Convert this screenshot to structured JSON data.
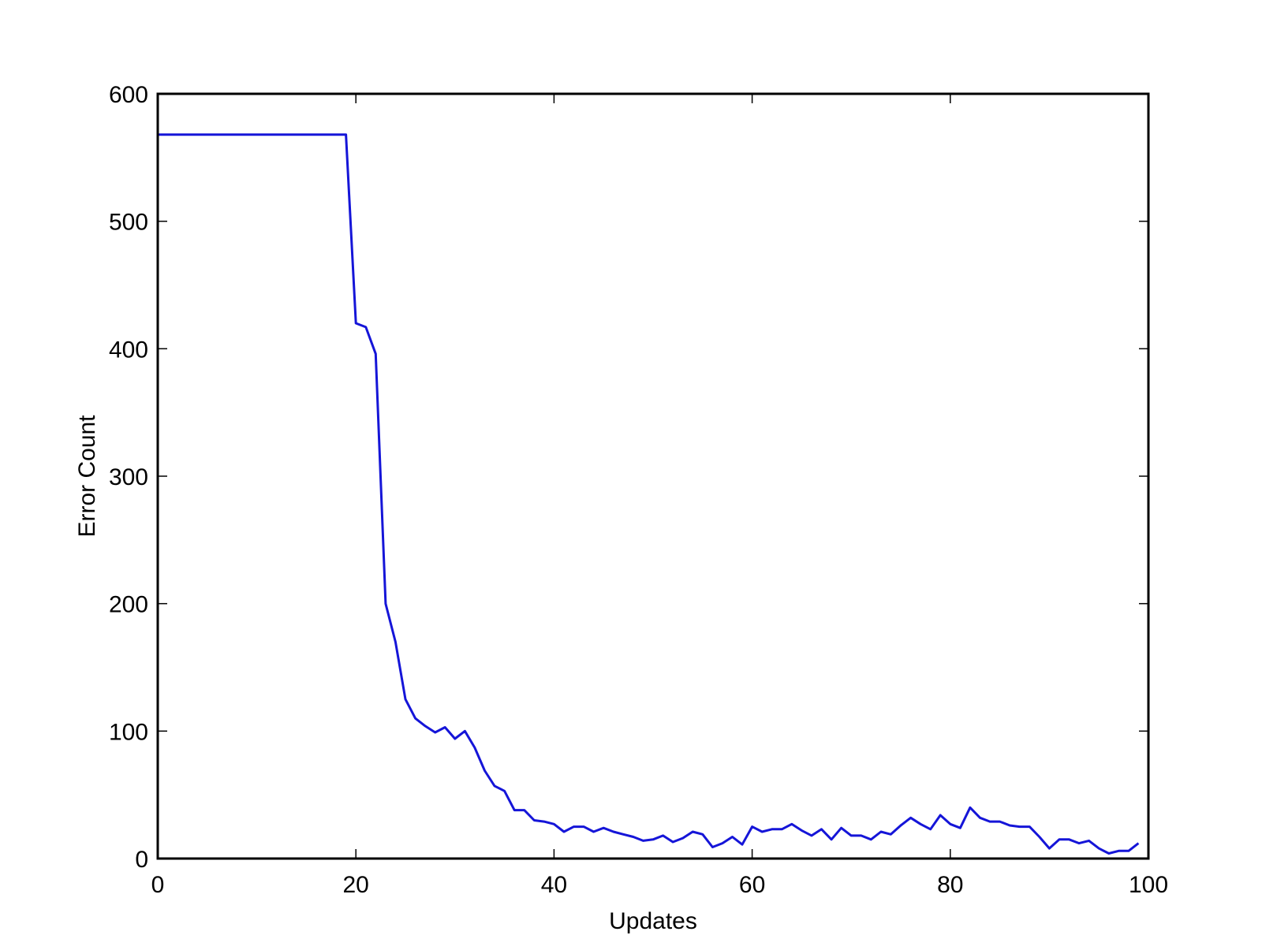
{
  "chart_data": {
    "type": "line",
    "title": "",
    "xlabel": "Updates",
    "ylabel": "Error Count",
    "xlim": [
      0,
      100
    ],
    "ylim": [
      0,
      600
    ],
    "xticks": [
      0,
      20,
      40,
      60,
      80,
      100
    ],
    "yticks": [
      0,
      100,
      200,
      300,
      400,
      500,
      600
    ],
    "xtick_labels": [
      "0",
      "20",
      "40",
      "60",
      "80",
      "100"
    ],
    "ytick_labels": [
      "0",
      "100",
      "200",
      "300",
      "400",
      "500",
      "600"
    ],
    "grid": false,
    "legend": false,
    "colors": {
      "series": "#1515d8",
      "axes": "#000000"
    },
    "series": [
      {
        "x": [
          0,
          1,
          2,
          3,
          4,
          5,
          6,
          7,
          8,
          9,
          10,
          11,
          12,
          13,
          14,
          15,
          16,
          17,
          18,
          19,
          20,
          21,
          22,
          23,
          24,
          25,
          26,
          27,
          28,
          29,
          30,
          31,
          32,
          33,
          34,
          35,
          36,
          37,
          38,
          39,
          40,
          41,
          42,
          43,
          44,
          45,
          46,
          47,
          48,
          49,
          50,
          51,
          52,
          53,
          54,
          55,
          56,
          57,
          58,
          59,
          60,
          61,
          62,
          63,
          64,
          65,
          66,
          67,
          68,
          69,
          70,
          71,
          72,
          73,
          74,
          75,
          76,
          77,
          78,
          79,
          80,
          81,
          82,
          83,
          84,
          85,
          86,
          87,
          88,
          89,
          90,
          91,
          92,
          93,
          94,
          95,
          96,
          97,
          98,
          99
        ],
        "values": [
          568,
          568,
          568,
          568,
          568,
          568,
          568,
          568,
          568,
          568,
          568,
          568,
          568,
          568,
          568,
          568,
          568,
          568,
          568,
          568,
          420,
          417,
          396,
          200,
          170,
          125,
          110,
          104,
          99,
          103,
          94,
          100,
          87,
          69,
          57,
          53,
          38,
          38,
          30,
          29,
          27,
          21,
          25,
          25,
          21,
          24,
          21,
          19,
          17,
          14,
          15,
          18,
          13,
          16,
          21,
          19,
          9,
          12,
          17,
          11,
          25,
          21,
          23,
          23,
          27,
          22,
          18,
          23,
          15,
          24,
          18,
          18,
          15,
          21,
          19,
          26,
          32,
          27,
          23,
          34,
          27,
          24,
          40,
          32,
          29,
          29,
          26,
          25,
          25,
          17,
          8,
          15,
          15,
          12,
          14,
          8,
          4,
          6,
          6,
          12
        ]
      }
    ]
  }
}
